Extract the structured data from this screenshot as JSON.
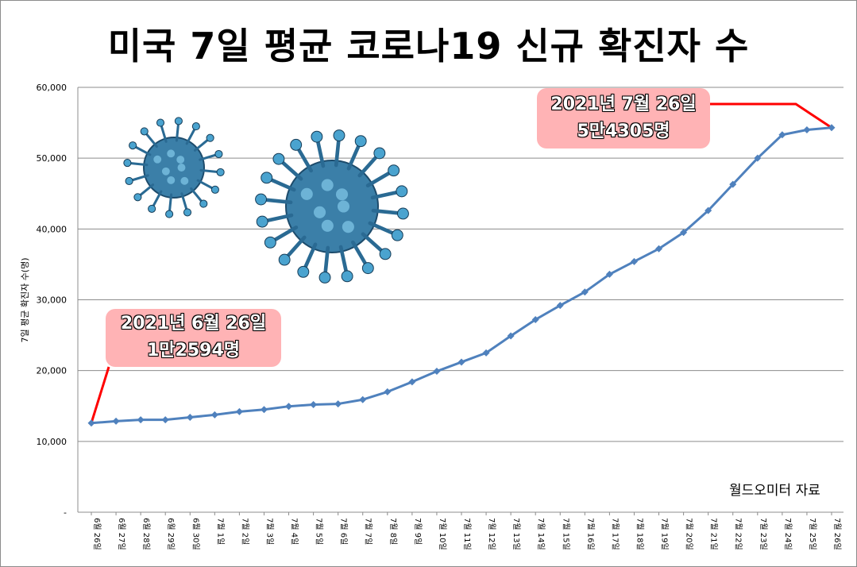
{
  "chart_data": {
    "type": "line",
    "title": "미국 7일 평균 코로나19 신규 확진자 수",
    "ylabel": "7일 평균 확진자 수(명)",
    "xlabel": "",
    "ylim": [
      0,
      60000
    ],
    "yticks": [
      {
        "value": 0,
        "label": "-"
      },
      {
        "value": 10000,
        "label": "10,000"
      },
      {
        "value": 20000,
        "label": "20,000"
      },
      {
        "value": 30000,
        "label": "30,000"
      },
      {
        "value": 40000,
        "label": "40,000"
      },
      {
        "value": 50000,
        "label": "50,000"
      },
      {
        "value": 60000,
        "label": "60,000"
      }
    ],
    "grid": true,
    "legend": "none",
    "categories": [
      "6월 26일",
      "6월 27일",
      "6월 28일",
      "6월 29일",
      "6월 30일",
      "7월 1일",
      "7월 2일",
      "7월 3일",
      "7월 4일",
      "7월 5일",
      "7월 6일",
      "7월 7일",
      "7월 8일",
      "7월 9일",
      "7월 10일",
      "7월 11일",
      "7월 12일",
      "7월 13일",
      "7월 14일",
      "7월 15일",
      "7월 16일",
      "7월 17일",
      "7월 18일",
      "7월 19일",
      "7월 20일",
      "7월 21일",
      "7월 22일",
      "7월 23일",
      "7월 24일",
      "7월 25일",
      "7월 26일"
    ],
    "series": [
      {
        "values": [
          12594,
          12850,
          13050,
          13050,
          13400,
          13750,
          14200,
          14500,
          14950,
          15200,
          15300,
          15900,
          17000,
          18400,
          19900,
          21200,
          22500,
          24900,
          27200,
          29200,
          31100,
          33600,
          35400,
          37200,
          39500,
          42600,
          46300,
          50000,
          53300,
          54000,
          54305
        ],
        "color": "#4f81bd"
      }
    ],
    "annotations": [
      {
        "index": 0,
        "line1": "2021년 6월 26일",
        "line2": "1만2594명"
      },
      {
        "index": 30,
        "line1": "2021년 7월 26일",
        "line2": "5만4305명"
      }
    ],
    "source": "월드오미터 자료"
  },
  "colors": {
    "line": "#4f81bd",
    "leader": "#ff0000",
    "callout_bg": "#ffb3b5",
    "grid": "#8c8c8c"
  },
  "decorations": [
    "virus-image-small",
    "virus-image-large"
  ]
}
